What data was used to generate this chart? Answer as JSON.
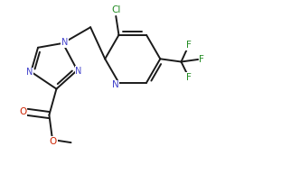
{
  "bg_color": "#ffffff",
  "line_color": "#1a1a1a",
  "N_color": "#4444cc",
  "O_color": "#cc2200",
  "Cl_color": "#228B22",
  "F_color": "#228B22",
  "bond_lw": 1.4,
  "figsize": [
    3.22,
    1.93
  ],
  "dpi": 100,
  "xlim": [
    0,
    1.0
  ],
  "ylim": [
    0,
    0.6
  ]
}
